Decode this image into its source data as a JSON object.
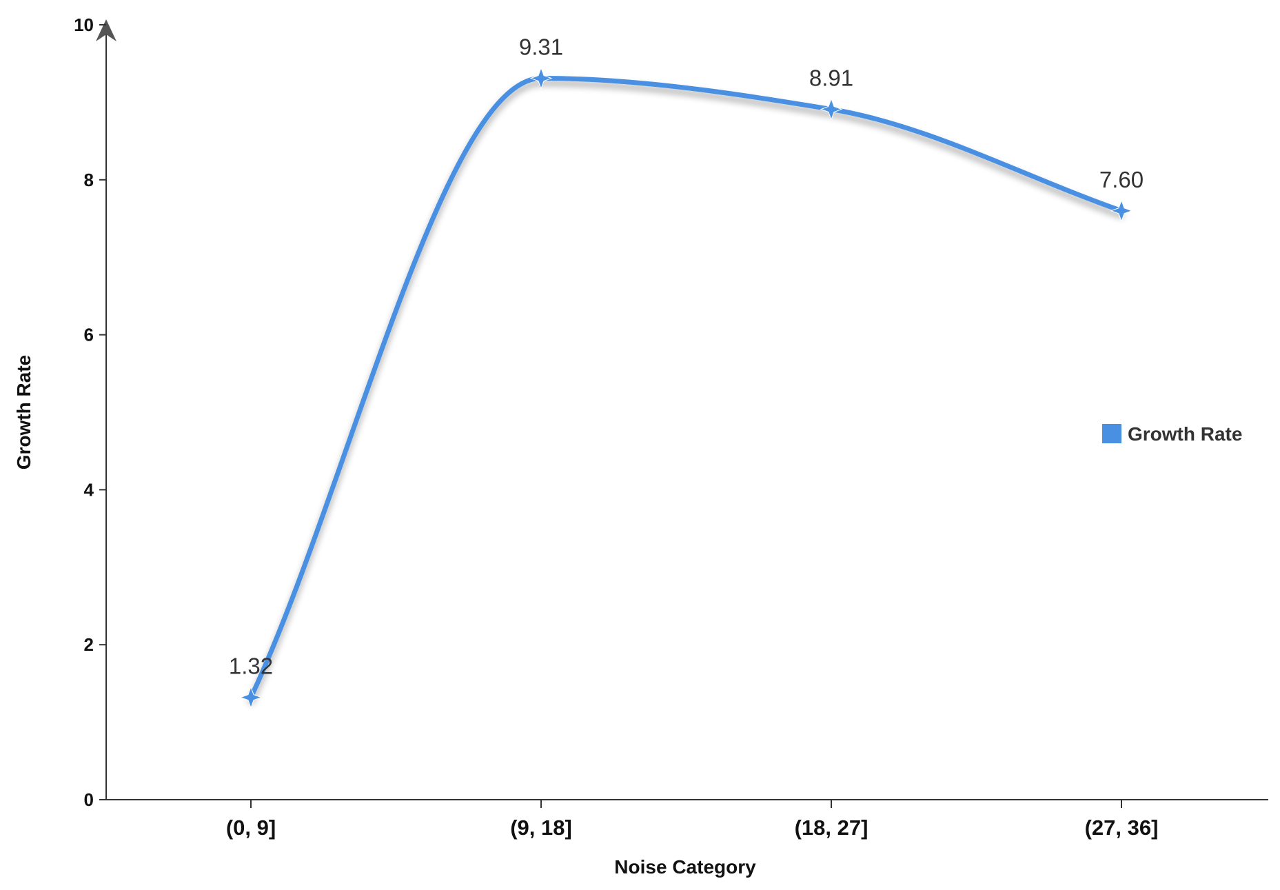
{
  "chart_data": {
    "type": "line",
    "categories": [
      "(0, 9]",
      "(9, 18]",
      "(18, 27]",
      "(27, 36]"
    ],
    "series": [
      {
        "name": "Growth Rate",
        "values": [
          1.32,
          9.31,
          8.91,
          7.6
        ],
        "color": "#4a90e2"
      }
    ],
    "data_labels": [
      "1.32",
      "9.31",
      "8.91",
      "7.60"
    ],
    "xlabel": "Noise Category",
    "ylabel": "Growth Rate",
    "ylim": [
      0,
      10
    ],
    "yticks": [
      "0",
      "2",
      "4",
      "6",
      "8",
      "10"
    ],
    "line_style": "smooth",
    "marker": "four-point-star",
    "grid": false,
    "legend": {
      "position": "right",
      "label": "Growth Rate"
    }
  }
}
